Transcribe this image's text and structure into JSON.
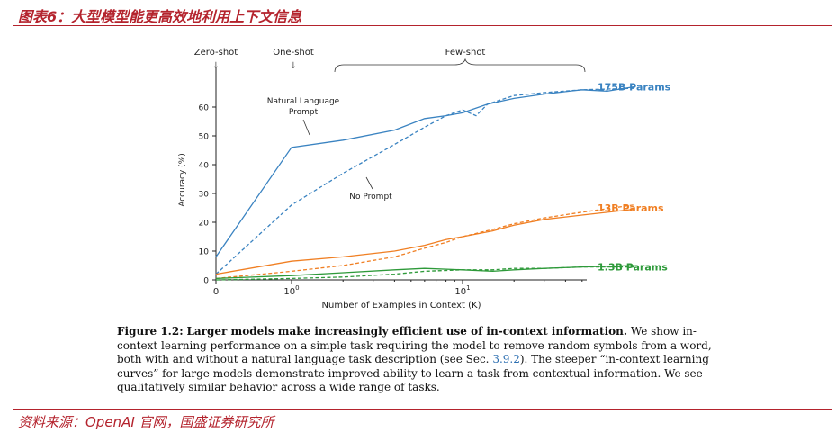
{
  "header": {
    "title": "图表6：大型模型能更高效地利用上下文信息"
  },
  "footer": {
    "source": "资料来源：OpenAI 官网，国盛证券研究所"
  },
  "figure": {
    "caption_label": "Figure 1.2:",
    "caption_bold": "Larger models make increasingly efficient use of in-context information.",
    "caption_text_1": "We show in-context learning performance on a simple task requiring the model to remove random symbols from a word, both with and without a natural language task description (see Sec.",
    "caption_ref": "3.9.2",
    "caption_text_2": "). The steeper “in-context learning curves” for large models demonstrate improved ability to learn a task from contextual information. We see qualitatively similar behavior across a wide range of tasks."
  },
  "chart_data": {
    "type": "line",
    "title": "",
    "xlabel": "Number of Examples in Context  (K)",
    "ylabel": "Accuracy (%)",
    "x_scale": "log (0 placed at left edge)",
    "x_ticks": [
      {
        "k": 0,
        "base": "0",
        "exp": ""
      },
      {
        "k": 1,
        "base": "10",
        "exp": "0"
      },
      {
        "k": 10,
        "base": "10",
        "exp": "1"
      }
    ],
    "y_ticks": [
      0,
      10,
      20,
      30,
      40,
      50,
      60
    ],
    "ylim": [
      0,
      70
    ],
    "xlim_k": [
      0,
      100
    ],
    "top_labels": {
      "zero": "Zero-shot",
      "one": "One-shot",
      "few": "Few-shot",
      "arrow": "↓"
    },
    "annotations": {
      "natural_prompt_line1": "Natural Language",
      "natural_prompt_line2": "Prompt",
      "no_prompt": "No Prompt"
    },
    "series": [
      {
        "name": "175B Params",
        "color": "#3a83c1",
        "style": "solid",
        "points": [
          [
            0,
            8
          ],
          [
            1,
            46
          ],
          [
            2,
            48.5
          ],
          [
            4,
            52
          ],
          [
            6,
            56
          ],
          [
            8,
            57
          ],
          [
            10,
            58
          ],
          [
            14,
            61
          ],
          [
            20,
            63
          ],
          [
            30,
            64.5
          ],
          [
            50,
            66
          ],
          [
            70,
            65.5
          ],
          [
            100,
            67
          ]
        ]
      },
      {
        "name": "175B Params",
        "color": "#3a83c1",
        "style": "dashed",
        "points": [
          [
            0,
            2
          ],
          [
            1,
            26
          ],
          [
            2,
            37
          ],
          [
            4,
            47
          ],
          [
            6,
            53
          ],
          [
            8,
            57
          ],
          [
            10,
            59
          ],
          [
            12,
            57
          ],
          [
            14,
            61
          ],
          [
            20,
            64
          ],
          [
            30,
            65
          ],
          [
            50,
            66
          ],
          [
            100,
            66.5
          ]
        ]
      },
      {
        "name": "13B Params",
        "color": "#f07f23",
        "style": "solid",
        "points": [
          [
            0,
            2
          ],
          [
            1,
            6.5
          ],
          [
            2,
            8
          ],
          [
            4,
            10
          ],
          [
            6,
            12
          ],
          [
            8,
            14
          ],
          [
            10,
            15
          ],
          [
            15,
            17
          ],
          [
            20,
            19
          ],
          [
            30,
            21
          ],
          [
            50,
            22.5
          ],
          [
            100,
            24.5
          ]
        ]
      },
      {
        "name": "13B Params",
        "color": "#f07f23",
        "style": "dashed",
        "points": [
          [
            0,
            0.5
          ],
          [
            1,
            3
          ],
          [
            2,
            5
          ],
          [
            4,
            8
          ],
          [
            6,
            11
          ],
          [
            8,
            13
          ],
          [
            10,
            15
          ],
          [
            15,
            17.5
          ],
          [
            20,
            19.5
          ],
          [
            30,
            21.5
          ],
          [
            50,
            23.5
          ],
          [
            100,
            26
          ]
        ]
      },
      {
        "name": "1.3B Params",
        "color": "#2e9a3a",
        "style": "solid",
        "points": [
          [
            0,
            0.5
          ],
          [
            1,
            1.5
          ],
          [
            2,
            2.5
          ],
          [
            4,
            3.5
          ],
          [
            6,
            4
          ],
          [
            10,
            3.5
          ],
          [
            15,
            3
          ],
          [
            20,
            3.5
          ],
          [
            30,
            4
          ],
          [
            50,
            4.5
          ],
          [
            100,
            5
          ]
        ]
      },
      {
        "name": "1.3B Params",
        "color": "#2e9a3a",
        "style": "dashed",
        "points": [
          [
            0,
            0
          ],
          [
            1,
            0.5
          ],
          [
            2,
            1
          ],
          [
            4,
            2
          ],
          [
            6,
            3
          ],
          [
            10,
            3.5
          ],
          [
            15,
            3.5
          ],
          [
            20,
            4
          ],
          [
            30,
            4
          ],
          [
            50,
            4.5
          ],
          [
            100,
            4.5
          ]
        ]
      }
    ],
    "legend": [
      {
        "label": "175B Params",
        "color": "#3a83c1",
        "y": 67
      },
      {
        "label": "13B Params",
        "color": "#f07f23",
        "y": 25
      },
      {
        "label": "1.3B Params",
        "color": "#2e9a3a",
        "y": 4.5
      }
    ]
  }
}
